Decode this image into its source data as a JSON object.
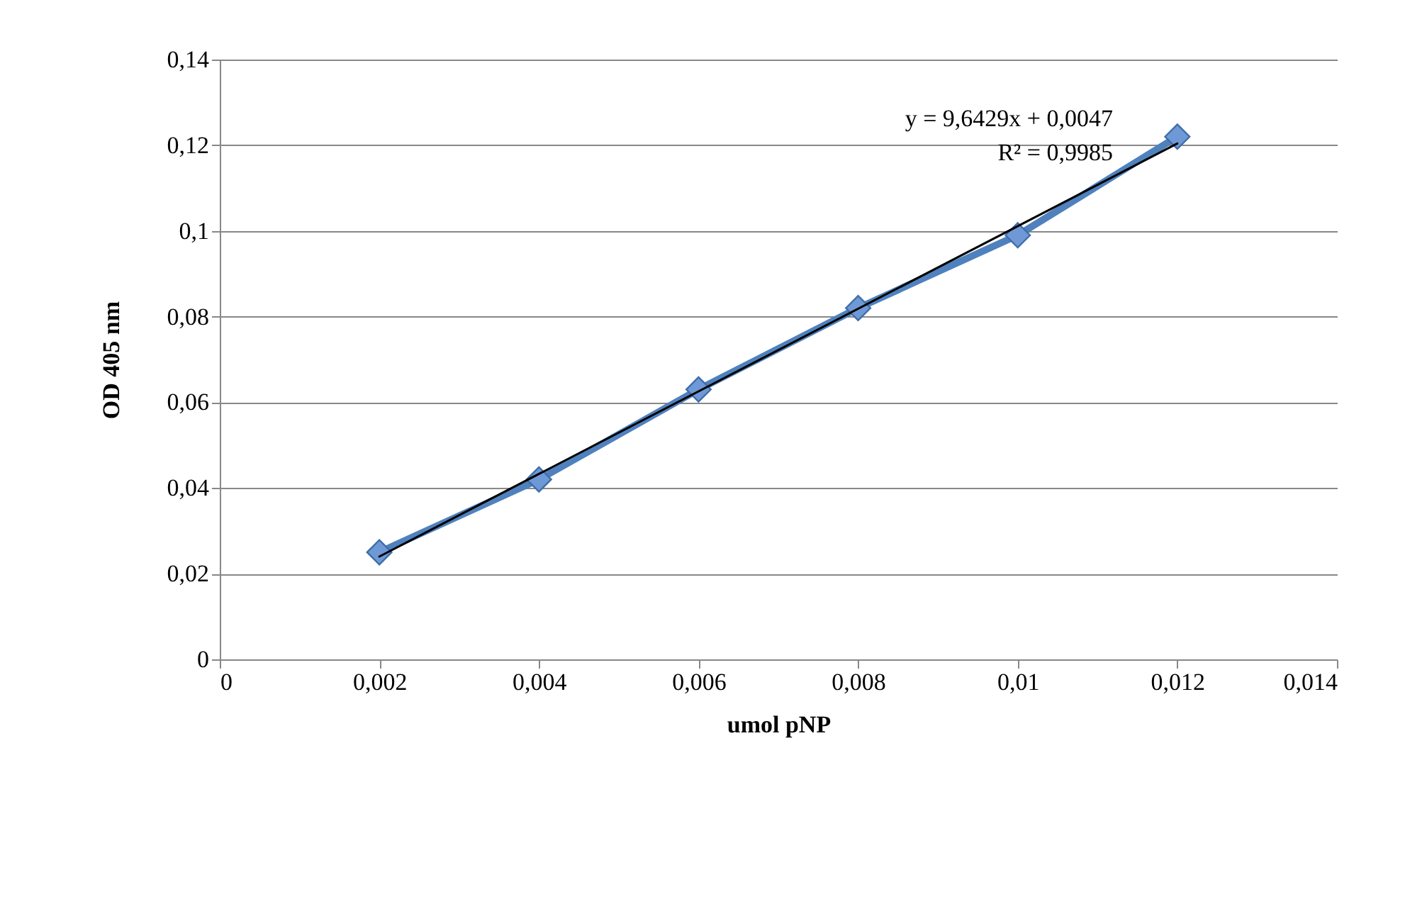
{
  "chart_data": {
    "type": "line",
    "xlabel": "umol pNP",
    "ylabel": "OD 405 nm",
    "x": [
      0.002,
      0.004,
      0.006,
      0.008,
      0.01,
      0.012
    ],
    "series": [
      {
        "color": "#4f81bd",
        "values": [
          0.025,
          0.042,
          0.063,
          0.082,
          0.099,
          0.122
        ],
        "marker": "diamond"
      },
      {
        "type": "line",
        "color": "#000000",
        "x": [
          0.002,
          0.012
        ],
        "values": [
          0.024,
          0.1204
        ],
        "marker": "none"
      }
    ],
    "xlim": [
      0,
      0.014
    ],
    "xticks": [
      0,
      {
        "value": 0.002,
        "label": "0,002"
      },
      {
        "value": 0.004,
        "label": "0,004"
      },
      {
        "value": 0.006,
        "label": "0,006"
      },
      {
        "value": 0.008,
        "label": "0,008"
      },
      {
        "value": 0.01,
        "label": "0,01"
      },
      {
        "value": 0.012,
        "label": "0,012"
      },
      {
        "value": 0.014,
        "label": "0,014"
      }
    ],
    "ylim": [
      0,
      0.14
    ],
    "yticks": [
      0,
      {
        "value": 0.02,
        "label": "0,02"
      },
      {
        "value": 0.04,
        "label": "0,04"
      },
      {
        "value": 0.06,
        "label": "0,06"
      },
      {
        "value": 0.08,
        "label": "0,08"
      },
      {
        "value": 0.1,
        "label": "0,1"
      },
      {
        "value": 0.12,
        "label": "0,12"
      },
      {
        "value": 0.14,
        "label": "0,14"
      }
    ],
    "grid": "y",
    "annotations": [
      "y = 9,6429x + 0,0047",
      "R² = 0,9985"
    ]
  }
}
